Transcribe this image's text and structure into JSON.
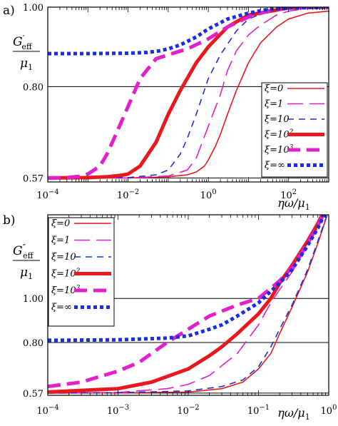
{
  "chart_data": [
    {
      "type": "line",
      "panel_label": "a)",
      "ylabel": {
        "main": "G",
        "sup": "′",
        "sub": "eff",
        "den": "μ",
        "den_sub": "1"
      },
      "xlabel": "ηω/μ",
      "xlabel_sub": "1",
      "x_scale": "log",
      "xlim": [
        0.0001,
        1000
      ],
      "ylim": [
        0.56,
        1.0
      ],
      "y_ticks": [
        {
          "value": 0.57,
          "label": "0.57"
        },
        {
          "value": 0.8,
          "label": "0.80"
        },
        {
          "value": 1.0,
          "label": "1.00"
        }
      ],
      "x_ticks": [
        {
          "value": 0.0001,
          "base": "10",
          "exp": "−4"
        },
        {
          "value": 0.01,
          "base": "10",
          "exp": "−2"
        },
        {
          "value": 1,
          "base": "10",
          "exp": "0"
        },
        {
          "value": 100,
          "base": "10",
          "exp": "2"
        }
      ],
      "grid": "horizontal lines at y ticks",
      "legend_position": "right",
      "series": [
        {
          "name": "ξ=0",
          "color": "#e8191c",
          "style": "solid",
          "width": 1.6,
          "x": [
            0.0001,
            0.01,
            0.1,
            0.3,
            0.5,
            0.8,
            1,
            1.5,
            2,
            3,
            5,
            10,
            20,
            50,
            100,
            300,
            1000
          ],
          "y": [
            0.57,
            0.57,
            0.573,
            0.578,
            0.585,
            0.6,
            0.615,
            0.65,
            0.68,
            0.73,
            0.79,
            0.86,
            0.91,
            0.95,
            0.97,
            0.985,
            0.99
          ]
        },
        {
          "name": "ξ=1",
          "color": "#e020c8",
          "style": "long-dash",
          "width": 1.6,
          "x": [
            0.0001,
            0.01,
            0.1,
            0.3,
            0.5,
            1,
            2,
            3,
            5,
            10,
            20,
            50,
            100,
            300,
            1000
          ],
          "y": [
            0.57,
            0.57,
            0.575,
            0.59,
            0.62,
            0.7,
            0.78,
            0.84,
            0.89,
            0.93,
            0.955,
            0.98,
            0.99,
            0.997,
            1.0
          ]
        },
        {
          "name": "ξ=10",
          "color": "#1a2ee0",
          "style": "dash",
          "width": 1.6,
          "x": [
            0.0001,
            0.01,
            0.05,
            0.1,
            0.2,
            0.3,
            0.5,
            1,
            2,
            5,
            10,
            30,
            100,
            1000
          ],
          "y": [
            0.57,
            0.571,
            0.578,
            0.59,
            0.63,
            0.67,
            0.73,
            0.82,
            0.88,
            0.94,
            0.97,
            0.99,
            0.998,
            1.0
          ]
        },
        {
          "name": "ξ=10^2",
          "color": "#e8191c",
          "style": "solid",
          "width": 5,
          "x": [
            0.0001,
            0.001,
            0.003,
            0.007,
            0.01,
            0.02,
            0.05,
            0.1,
            0.2,
            0.5,
            1,
            3,
            10,
            100,
            1000
          ],
          "y": [
            0.57,
            0.571,
            0.573,
            0.577,
            0.58,
            0.6,
            0.66,
            0.73,
            0.79,
            0.86,
            0.9,
            0.95,
            0.98,
            0.998,
            1.0
          ]
        },
        {
          "name": "ξ=10^3",
          "color": "#e020c8",
          "style": "thick-dash",
          "width": 5,
          "x": [
            0.0001,
            0.0003,
            0.0006,
            0.001,
            0.002,
            0.003,
            0.005,
            0.01,
            0.02,
            0.05,
            0.1,
            0.3,
            1,
            3,
            10,
            30,
            100,
            1000
          ],
          "y": [
            0.57,
            0.571,
            0.574,
            0.58,
            0.6,
            0.63,
            0.68,
            0.75,
            0.82,
            0.87,
            0.88,
            0.895,
            0.92,
            0.95,
            0.975,
            0.99,
            0.998,
            1.0
          ]
        },
        {
          "name": "ξ=∞",
          "color": "#1a2ee0",
          "style": "dot",
          "width": 5,
          "x": [
            0.0001,
            0.001,
            0.01,
            0.03,
            0.06,
            0.1,
            0.2,
            0.5,
            1,
            3,
            10,
            30,
            100,
            1000
          ],
          "y": [
            0.883,
            0.883,
            0.884,
            0.886,
            0.89,
            0.895,
            0.905,
            0.925,
            0.945,
            0.97,
            0.985,
            0.994,
            0.998,
            1.0
          ]
        }
      ]
    },
    {
      "type": "line",
      "panel_label": "b)",
      "ylabel": {
        "main": "G",
        "sup": "″",
        "sub": "eff",
        "den": "μ",
        "den_sub": "1"
      },
      "xlabel": "ηω/μ",
      "xlabel_sub": "1",
      "x_scale": "log",
      "xlim": [
        0.0001,
        1
      ],
      "ylim": [
        0.56,
        1.38
      ],
      "y_ticks": [
        {
          "value": 0.57,
          "label": "0.57"
        },
        {
          "value": 0.8,
          "label": "0.80"
        },
        {
          "value": 1.0,
          "label": "1.00"
        }
      ],
      "x_ticks": [
        {
          "value": 0.0001,
          "base": "10",
          "exp": "−4"
        },
        {
          "value": 0.001,
          "base": "10",
          "exp": "−3"
        },
        {
          "value": 0.01,
          "base": "10",
          "exp": "−2"
        },
        {
          "value": 0.1,
          "base": "10",
          "exp": "−1"
        },
        {
          "value": 1,
          "base": "10",
          "exp": "0"
        }
      ],
      "grid": "horizontal lines at y ticks",
      "legend_position": "top-left",
      "series": [
        {
          "name": "ξ=0",
          "color": "#e8191c",
          "style": "solid",
          "width": 1.6,
          "x": [
            0.0001,
            0.001,
            0.01,
            0.03,
            0.06,
            0.1,
            0.15,
            0.2,
            0.3,
            0.5,
            0.7,
            1
          ],
          "y": [
            0.57,
            0.571,
            0.575,
            0.59,
            0.62,
            0.68,
            0.75,
            0.84,
            0.96,
            1.12,
            1.25,
            1.4
          ]
        },
        {
          "name": "ξ=1",
          "color": "#e020c8",
          "style": "long-dash",
          "width": 1.6,
          "x": [
            0.0001,
            0.001,
            0.005,
            0.01,
            0.02,
            0.05,
            0.1,
            0.15,
            0.2,
            0.3,
            0.5,
            0.7,
            1
          ],
          "y": [
            0.57,
            0.573,
            0.59,
            0.61,
            0.65,
            0.75,
            0.88,
            0.98,
            1.04,
            1.12,
            1.24,
            1.32,
            1.42
          ]
        },
        {
          "name": "ξ=10",
          "color": "#1a2ee0",
          "style": "dash",
          "width": 1.6,
          "x": [
            0.0001,
            0.001,
            0.01,
            0.03,
            0.06,
            0.1,
            0.15,
            0.2,
            0.3,
            0.5,
            0.7,
            1
          ],
          "y": [
            0.57,
            0.572,
            0.58,
            0.6,
            0.63,
            0.69,
            0.78,
            0.86,
            0.97,
            1.13,
            1.26,
            1.4
          ]
        },
        {
          "name": "ξ=10^2",
          "color": "#e8191c",
          "style": "solid",
          "width": 5,
          "x": [
            0.0001,
            0.001,
            0.003,
            0.01,
            0.02,
            0.03,
            0.05,
            0.1,
            0.15,
            0.2,
            0.3,
            0.5,
            0.7,
            1
          ],
          "y": [
            0.575,
            0.59,
            0.62,
            0.68,
            0.74,
            0.78,
            0.84,
            0.93,
            1.0,
            1.07,
            1.15,
            1.26,
            1.34,
            1.44
          ]
        },
        {
          "name": "ξ=10^3",
          "color": "#e020c8",
          "style": "thick-dash",
          "width": 5,
          "x": [
            0.0001,
            0.0003,
            0.001,
            0.002,
            0.003,
            0.005,
            0.01,
            0.02,
            0.05,
            0.1,
            0.2,
            0.3,
            0.5,
            0.7,
            1
          ],
          "y": [
            0.6,
            0.62,
            0.67,
            0.71,
            0.75,
            0.8,
            0.86,
            0.92,
            0.97,
            1.0,
            1.08,
            1.14,
            1.25,
            1.33,
            1.43
          ]
        },
        {
          "name": "ξ=∞",
          "color": "#1a2ee0",
          "style": "dot",
          "width": 5,
          "x": [
            0.0001,
            0.001,
            0.005,
            0.01,
            0.02,
            0.03,
            0.05,
            0.1,
            0.2,
            0.3,
            0.5,
            0.7,
            1
          ],
          "y": [
            0.81,
            0.812,
            0.82,
            0.83,
            0.86,
            0.88,
            0.92,
            0.98,
            1.07,
            1.13,
            1.24,
            1.32,
            1.42
          ]
        }
      ]
    }
  ]
}
